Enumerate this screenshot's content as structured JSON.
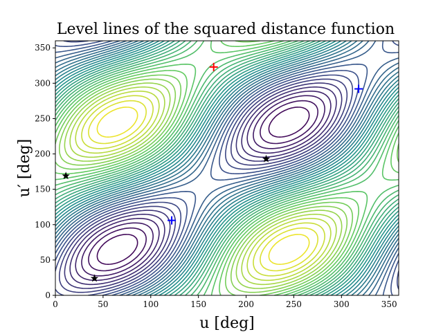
{
  "chart_data": {
    "type": "contour",
    "title": "Level lines of the squared distance function",
    "xlabel": "u [deg]",
    "ylabel": "u′ [deg]",
    "xlim": [
      0,
      360
    ],
    "ylim": [
      0,
      360
    ],
    "xticks": [
      "0",
      "50",
      "100",
      "150",
      "200",
      "250",
      "300",
      "350"
    ],
    "yticks": [
      "0",
      "50",
      "100",
      "150",
      "200",
      "250",
      "300",
      "350"
    ],
    "grid": false,
    "colormap": [
      "#440154",
      "#3b528b",
      "#21918c",
      "#5ec962",
      "#fde725"
    ],
    "markers": [
      {
        "kind": "plus",
        "color": "#ff0000",
        "x": 166,
        "y": 323
      },
      {
        "kind": "plus",
        "color": "#0000ff",
        "x": 122,
        "y": 106
      },
      {
        "kind": "plus",
        "color": "#0000ff",
        "x": 318,
        "y": 292
      },
      {
        "kind": "star",
        "color": "#000000",
        "x": 11,
        "y": 169
      },
      {
        "kind": "star",
        "color": "#000000",
        "x": 41,
        "y": 24
      },
      {
        "kind": "star",
        "color": "#000000",
        "x": 221,
        "y": 193
      }
    ]
  }
}
